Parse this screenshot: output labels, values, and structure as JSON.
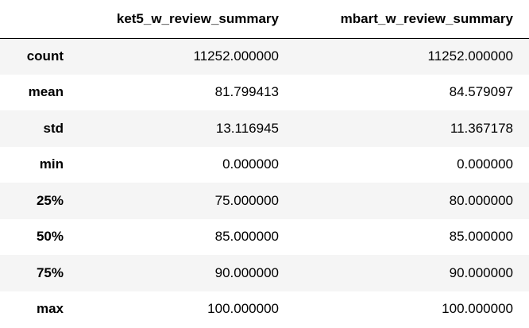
{
  "table": {
    "columns": [
      "ket5_w_review_summary",
      "mbart_w_review_summary"
    ],
    "rows": [
      {
        "label": "count",
        "values": [
          "11252.000000",
          "11252.000000"
        ]
      },
      {
        "label": "mean",
        "values": [
          "81.799413",
          "84.579097"
        ]
      },
      {
        "label": "std",
        "values": [
          "13.116945",
          "11.367178"
        ]
      },
      {
        "label": "min",
        "values": [
          "0.000000",
          "0.000000"
        ]
      },
      {
        "label": "25%",
        "values": [
          "75.000000",
          "80.000000"
        ]
      },
      {
        "label": "50%",
        "values": [
          "85.000000",
          "85.000000"
        ]
      },
      {
        "label": "75%",
        "values": [
          "90.000000",
          "90.000000"
        ]
      },
      {
        "label": "max",
        "values": [
          "100.000000",
          "100.000000"
        ]
      }
    ]
  }
}
